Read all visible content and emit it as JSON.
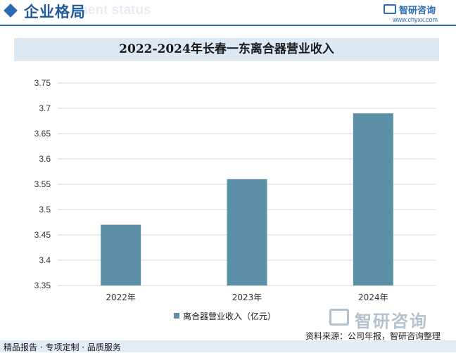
{
  "header": {
    "title": "企业格局",
    "ghost_text": "ment status"
  },
  "brand": {
    "name": "智研咨询",
    "url": "www.chyxx.com"
  },
  "watermark": {
    "text": "智研咨询"
  },
  "chart_data": {
    "type": "bar",
    "title": "2022-2024年长春一东离合器营业收入",
    "categories": [
      "2022年",
      "2023年",
      "2024年"
    ],
    "series": [
      {
        "name": "离合器营业收入（亿元）",
        "values": [
          3.47,
          3.56,
          3.69
        ],
        "color": "#5b8fa6"
      }
    ],
    "ylim": [
      3.35,
      3.75
    ],
    "yticks": [
      "3.35",
      "3.4",
      "3.45",
      "3.5",
      "3.55",
      "3.6",
      "3.65",
      "3.7",
      "3.75"
    ],
    "xlabel": "",
    "ylabel": "",
    "grid": true,
    "legend_position": "bottom"
  },
  "source": "资料来源：公司年报，智研咨询整理",
  "footer": {
    "text": "精品报告 · 专项定制 · 品质服务"
  }
}
